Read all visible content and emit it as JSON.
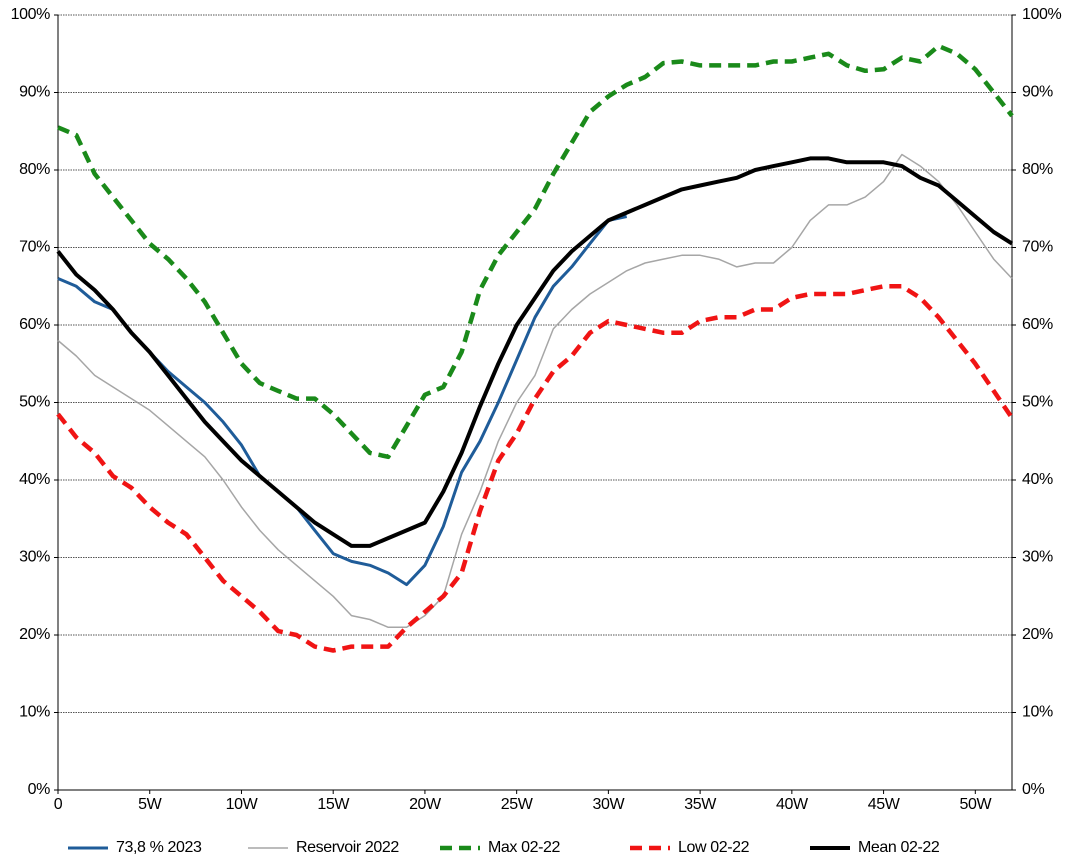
{
  "chart_data": {
    "type": "line",
    "x": [
      0,
      1,
      2,
      3,
      4,
      5,
      6,
      7,
      8,
      9,
      10,
      11,
      12,
      13,
      14,
      15,
      16,
      17,
      18,
      19,
      20,
      21,
      22,
      23,
      24,
      25,
      26,
      27,
      28,
      29,
      30,
      31,
      32,
      33,
      34,
      35,
      36,
      37,
      38,
      39,
      40,
      41,
      42,
      43,
      44,
      45,
      46,
      47,
      48,
      49,
      50,
      51,
      52
    ],
    "xlim": [
      0,
      52
    ],
    "xticks": [
      0,
      {
        "value": 5,
        "label": "5W"
      },
      {
        "value": 10,
        "label": "10W"
      },
      {
        "value": 15,
        "label": "15W"
      },
      {
        "value": 20,
        "label": "20W"
      },
      {
        "value": 25,
        "label": "25W"
      },
      {
        "value": 30,
        "label": "30W"
      },
      {
        "value": 35,
        "label": "35W"
      },
      {
        "value": 40,
        "label": "40W"
      },
      {
        "value": 45,
        "label": "45W"
      },
      {
        "value": 50,
        "label": "50W"
      }
    ],
    "ylim": [
      0,
      100
    ],
    "yticks": [
      {
        "value": 0,
        "label": "0%"
      },
      {
        "value": 10,
        "label": "10%"
      },
      {
        "value": 20,
        "label": "20%"
      },
      {
        "value": 30,
        "label": "30%"
      },
      {
        "value": 40,
        "label": "40%"
      },
      {
        "value": 50,
        "label": "50%"
      },
      {
        "value": 60,
        "label": "60%"
      },
      {
        "value": 70,
        "label": "70%"
      },
      {
        "value": 80,
        "label": "80%"
      },
      {
        "value": 90,
        "label": "90%"
      },
      {
        "value": 100,
        "label": "100%"
      }
    ],
    "y2lim": [
      0,
      100
    ],
    "y2ticks": [
      {
        "value": 0,
        "label": "0%"
      },
      {
        "value": 10,
        "label": "10%"
      },
      {
        "value": 20,
        "label": "20%"
      },
      {
        "value": 30,
        "label": "30%"
      },
      {
        "value": 40,
        "label": "40%"
      },
      {
        "value": 50,
        "label": "50%"
      },
      {
        "value": 60,
        "label": "60%"
      },
      {
        "value": 70,
        "label": "70%"
      },
      {
        "value": 80,
        "label": "80%"
      },
      {
        "value": 90,
        "label": "90%"
      },
      {
        "value": 100,
        "label": "100%"
      }
    ],
    "grid": true,
    "legend": "bottom",
    "series": [
      {
        "name": "73,8 % 2023",
        "color": "#1f5c99",
        "width": 3,
        "dashed": false,
        "values": [
          66,
          65,
          63,
          62,
          59,
          56.5,
          54,
          52,
          50,
          47.5,
          44.5,
          40.5,
          38.5,
          36.5,
          33.5,
          30.5,
          29.5,
          29,
          28,
          26.5,
          29,
          34,
          41,
          45,
          50,
          55.5,
          61,
          65,
          67.5,
          70.5,
          73.5,
          74,
          null,
          null,
          null,
          null,
          null,
          null,
          null,
          null,
          null,
          null,
          null,
          null,
          null,
          null,
          null,
          null,
          null,
          null,
          null,
          null,
          null
        ]
      },
      {
        "name": "Reservoir 2022",
        "color": "#a6a6a6",
        "width": 1.5,
        "dashed": false,
        "values": [
          58,
          56,
          53.5,
          52,
          50.5,
          49,
          47,
          45,
          43,
          40,
          36.5,
          33.5,
          31,
          29,
          27,
          25,
          22.5,
          22,
          21,
          21,
          22.5,
          25,
          33,
          38.5,
          45,
          50,
          53.5,
          59.5,
          62,
          64,
          65.5,
          67,
          68,
          68.5,
          69,
          69,
          68.5,
          67.5,
          68,
          68,
          70,
          73.5,
          75.5,
          75.5,
          76.5,
          78.5,
          82,
          80.5,
          78.5,
          75.5,
          72,
          68.5,
          66
        ]
      },
      {
        "name": "Max 02-22",
        "color": "#1a8a1a",
        "width": 4.5,
        "dashed": true,
        "values": [
          85.5,
          84.5,
          79.5,
          76.5,
          73.5,
          70.5,
          68.5,
          66,
          63,
          59,
          55,
          52.5,
          51.5,
          50.5,
          50.5,
          48.5,
          46,
          43.5,
          43,
          47,
          51,
          52,
          56.5,
          64.5,
          69,
          72,
          75,
          79.5,
          83.5,
          87.5,
          89.5,
          91,
          92,
          93.8,
          94,
          93.5,
          93.5,
          93.5,
          93.5,
          94,
          94,
          94.5,
          95,
          93.5,
          92.8,
          93,
          94.5,
          94,
          96,
          95,
          93,
          90,
          87
        ]
      },
      {
        "name": "Low 02-22",
        "color": "#f01414",
        "width": 4.5,
        "dashed": true,
        "values": [
          48.5,
          45.5,
          43.5,
          40.5,
          39,
          36.5,
          34.5,
          33,
          30,
          27,
          25,
          23,
          20.5,
          20,
          18.5,
          18,
          18.5,
          18.5,
          18.5,
          21,
          23,
          25,
          28,
          36,
          42.5,
          46,
          50.5,
          54,
          56,
          59,
          60.5,
          60,
          59.5,
          59,
          59,
          60.5,
          61,
          61,
          62,
          62,
          63.5,
          64,
          64,
          64,
          64.5,
          65,
          65,
          63.5,
          61,
          58,
          55,
          51.5,
          48
        ]
      },
      {
        "name": "Mean 02-22",
        "color": "#000000",
        "width": 4,
        "dashed": false,
        "values": [
          69.5,
          66.5,
          64.5,
          62,
          59,
          56.5,
          53.5,
          50.5,
          47.5,
          45,
          42.5,
          40.5,
          38.5,
          36.5,
          34.5,
          33,
          31.5,
          31.5,
          32.5,
          33.5,
          34.5,
          38.5,
          43.5,
          49.5,
          55,
          60,
          63.5,
          67,
          69.5,
          71.5,
          73.5,
          74.5,
          75.5,
          76.5,
          77.5,
          78,
          78.5,
          79,
          80,
          80.5,
          81,
          81.5,
          81.5,
          81,
          81,
          81,
          80.5,
          79,
          78,
          76,
          74,
          72,
          70.5
        ]
      }
    ]
  }
}
